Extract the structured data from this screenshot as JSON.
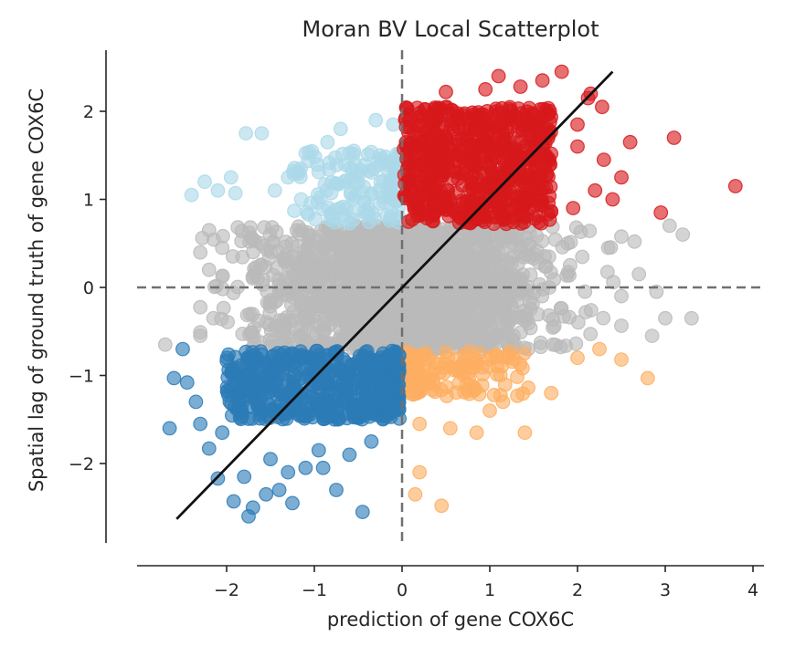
{
  "chart_data": {
    "type": "scatter",
    "title": "Moran BV Local Scatterplot",
    "xlabel": "prediction of gene COX6C",
    "ylabel": "Spatial lag of ground truth of gene COX6C",
    "xlim": [
      -3.0,
      4.1
    ],
    "ylim": [
      -2.95,
      2.7
    ],
    "xticks": [
      -2,
      -1,
      0,
      1,
      2,
      3,
      4
    ],
    "yticks": [
      -2,
      -1,
      0,
      1,
      2
    ],
    "xtick_labels": [
      "−2",
      "−1",
      "0",
      "1",
      "2",
      "3",
      "4"
    ],
    "ytick_labels": [
      "−2",
      "−1",
      "0",
      "1",
      "2"
    ],
    "grid": false,
    "legend": "none",
    "reference_lines": {
      "vertical_x": 0,
      "horizontal_y": 0,
      "style": "dashed",
      "color": "#707070"
    },
    "regression_line": {
      "points": [
        [
          -2.57,
          -2.63
        ],
        [
          2.4,
          2.45
        ]
      ],
      "color": "#111111"
    },
    "series": [
      {
        "quadrant": "HH",
        "color": "#d7191c",
        "cloud": {
          "x": [
            0.02,
            1.7
          ],
          "y": [
            0.72,
            2.05
          ],
          "count": 650
        },
        "points": [
          [
            1.82,
            2.45
          ],
          [
            0.5,
            2.22
          ],
          [
            0.95,
            2.25
          ],
          [
            1.35,
            2.28
          ],
          [
            2.12,
            2.15
          ],
          [
            2.15,
            2.2
          ],
          [
            2.28,
            2.05
          ],
          [
            2.6,
            1.65
          ],
          [
            3.1,
            1.7
          ],
          [
            2.3,
            1.45
          ],
          [
            2.5,
            1.25
          ],
          [
            2.4,
            1.0
          ],
          [
            3.8,
            1.15
          ],
          [
            2.95,
            0.85
          ],
          [
            1.6,
            2.35
          ],
          [
            2.0,
            1.6
          ],
          [
            2.2,
            1.1
          ],
          [
            1.95,
            0.9
          ],
          [
            2.0,
            1.85
          ],
          [
            1.1,
            2.4
          ]
        ]
      },
      {
        "quadrant": "LL",
        "color": "#2c7bb6",
        "cloud": {
          "x": [
            -2.0,
            -0.03
          ],
          "y": [
            -1.5,
            -0.72
          ],
          "count": 550
        },
        "points": [
          [
            -2.65,
            -1.6
          ],
          [
            -2.6,
            -1.03
          ],
          [
            -2.5,
            -0.7
          ],
          [
            -2.45,
            -1.08
          ],
          [
            -2.35,
            -1.3
          ],
          [
            -2.3,
            -1.55
          ],
          [
            -2.2,
            -1.83
          ],
          [
            -2.1,
            -2.17
          ],
          [
            -1.92,
            -2.43
          ],
          [
            -1.75,
            -2.6
          ],
          [
            -1.7,
            -2.5
          ],
          [
            -1.55,
            -2.35
          ],
          [
            -1.4,
            -2.3
          ],
          [
            -1.25,
            -2.45
          ],
          [
            -1.1,
            -2.05
          ],
          [
            -0.95,
            -1.85
          ],
          [
            -0.75,
            -2.3
          ],
          [
            -0.45,
            -2.55
          ],
          [
            -0.35,
            -1.75
          ],
          [
            -1.8,
            -2.15
          ],
          [
            -1.5,
            -1.95
          ],
          [
            -0.6,
            -1.9
          ],
          [
            -1.3,
            -2.1
          ],
          [
            -2.05,
            -1.65
          ],
          [
            -0.9,
            -2.05
          ]
        ]
      },
      {
        "quadrant": "LH",
        "color": "#abd9e9",
        "cloud": {
          "x": [
            -1.25,
            -0.03
          ],
          "y": [
            0.72,
            1.55
          ],
          "count": 140
        },
        "points": [
          [
            -2.4,
            1.05
          ],
          [
            -2.25,
            1.2
          ],
          [
            -2.1,
            1.1
          ],
          [
            -1.9,
            1.07
          ],
          [
            -1.78,
            1.75
          ],
          [
            -1.6,
            1.75
          ],
          [
            -1.45,
            1.1
          ],
          [
            -1.3,
            1.25
          ],
          [
            -0.85,
            1.65
          ],
          [
            -0.7,
            1.8
          ],
          [
            -0.55,
            1.55
          ],
          [
            -0.3,
            1.9
          ],
          [
            -0.1,
            1.85
          ],
          [
            -1.15,
            1.0
          ],
          [
            -1.95,
            1.25
          ]
        ]
      },
      {
        "quadrant": "HL",
        "color": "#fdae61",
        "cloud": {
          "x": [
            0.05,
            1.5
          ],
          "y": [
            -1.25,
            -0.72
          ],
          "count": 130
        },
        "points": [
          [
            0.15,
            -2.35
          ],
          [
            0.2,
            -2.1
          ],
          [
            0.45,
            -2.48
          ],
          [
            0.55,
            -1.6
          ],
          [
            0.85,
            -1.65
          ],
          [
            1.15,
            -1.3
          ],
          [
            1.4,
            -1.65
          ],
          [
            1.7,
            -1.2
          ],
          [
            2.0,
            -0.8
          ],
          [
            2.25,
            -0.7
          ],
          [
            2.5,
            -0.82
          ],
          [
            2.8,
            -1.03
          ],
          [
            0.2,
            -1.55
          ],
          [
            1.0,
            -1.4
          ]
        ]
      },
      {
        "quadrant": "ns",
        "color": "#bababa",
        "cloud": {
          "x": [
            -2.0,
            2.2
          ],
          "y": [
            -0.7,
            0.7
          ],
          "count": 1700
        },
        "points": [
          [
            -2.7,
            -0.65
          ],
          [
            -2.2,
            0.65
          ],
          [
            -2.2,
            0.2
          ],
          [
            -2.05,
            0.45
          ],
          [
            2.65,
            0.52
          ],
          [
            2.7,
            0.15
          ],
          [
            2.9,
            -0.05
          ],
          [
            3.0,
            -0.35
          ],
          [
            3.3,
            -0.35
          ],
          [
            2.85,
            -0.55
          ],
          [
            3.05,
            0.7
          ],
          [
            3.2,
            0.6
          ],
          [
            2.35,
            0.45
          ],
          [
            2.5,
            -0.1
          ],
          [
            -2.15,
            -0.35
          ],
          [
            -2.3,
            -0.55
          ]
        ]
      }
    ]
  }
}
